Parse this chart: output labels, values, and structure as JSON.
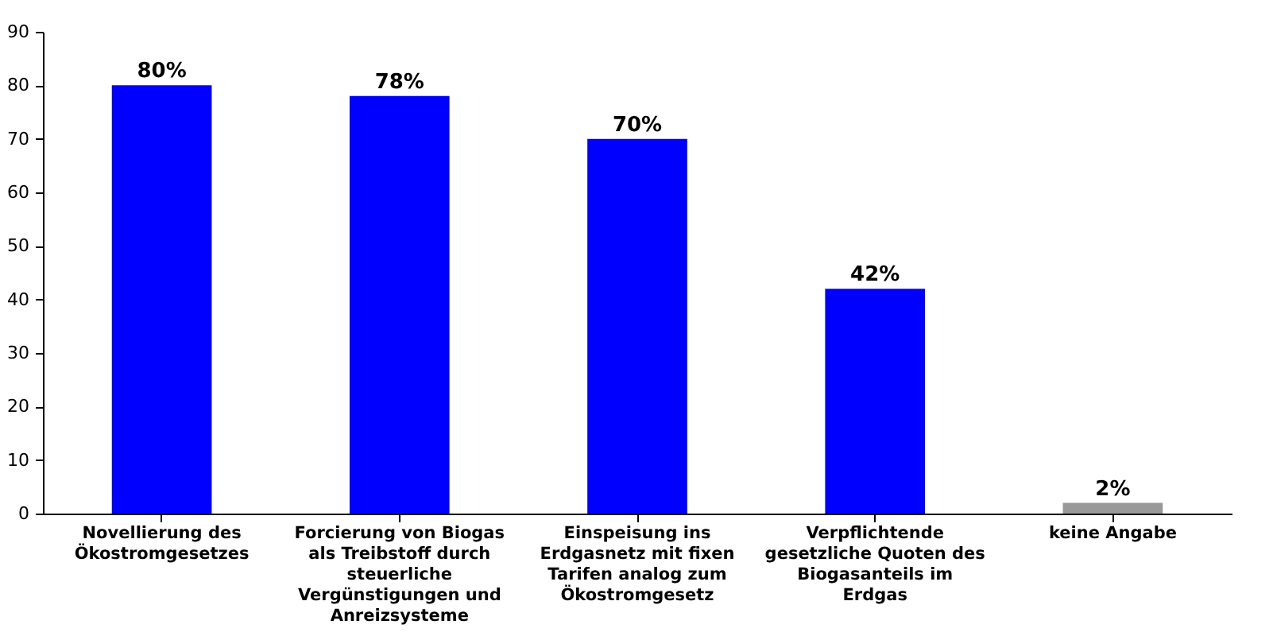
{
  "chart_data": {
    "type": "bar",
    "categories": [
      "Novellierung des Ökostromgesetzes",
      "Forcierung von Biogas als Treibstoff durch steuerliche Vergünstigungen und Anreizsysteme",
      "Einspeisung ins Erdgasnetz mit fixen Tarifen analog zum Ökostromgesetz",
      "Verpflichtende gesetzliche Quoten des Biogasanteils im Erdgas",
      "keine Angabe"
    ],
    "values": [
      80,
      78,
      70,
      42,
      2
    ],
    "value_labels": [
      "80%",
      "78%",
      "70%",
      "42%",
      "2%"
    ],
    "colors": [
      "#0000ff",
      "#0000ff",
      "#0000ff",
      "#0000ff",
      "#999999"
    ],
    "ylim": [
      0,
      90
    ],
    "yticks": [
      0,
      10,
      20,
      30,
      40,
      50,
      60,
      70,
      80,
      90
    ],
    "grid": false
  }
}
